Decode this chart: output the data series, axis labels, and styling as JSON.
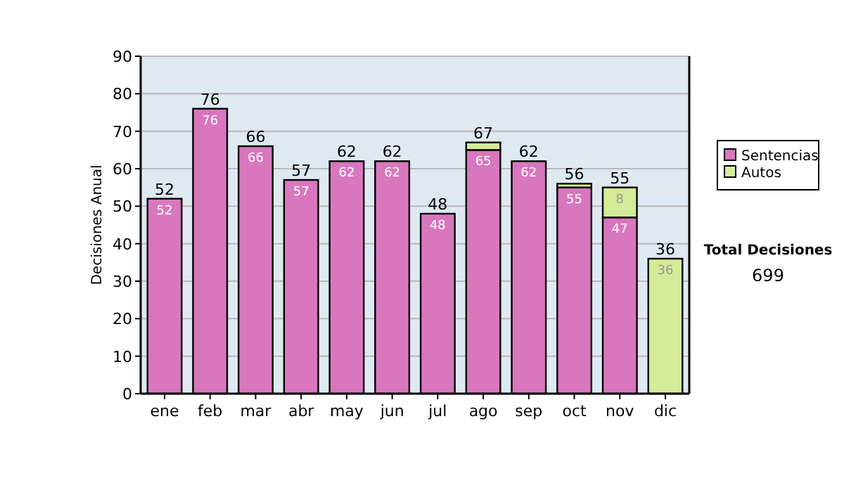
{
  "chart_data": {
    "type": "bar",
    "stacked": true,
    "ylabel": "Decisiones Anual",
    "categories": [
      "ene",
      "feb",
      "mar",
      "abr",
      "may",
      "jun",
      "jul",
      "ago",
      "sep",
      "oct",
      "nov",
      "dic"
    ],
    "series": [
      {
        "name": "Sentencias",
        "color": "#d877bd",
        "values": [
          52,
          76,
          66,
          57,
          62,
          62,
          48,
          65,
          62,
          55,
          47,
          null
        ],
        "value_labels": [
          "52",
          "76",
          "66",
          "57",
          "62",
          "62",
          "48",
          "65",
          "62",
          "55",
          "47",
          null
        ]
      },
      {
        "name": "Autos",
        "color": "#d4eb98",
        "values": [
          null,
          null,
          null,
          null,
          null,
          null,
          null,
          2,
          null,
          1,
          8,
          36
        ],
        "value_labels": [
          null,
          null,
          null,
          null,
          null,
          null,
          null,
          null,
          null,
          null,
          "8",
          "36"
        ]
      }
    ],
    "totals": [
      "52",
      "76",
      "66",
      "57",
      "62",
      "62",
      "48",
      "67",
      "62",
      "56",
      "55",
      "36"
    ],
    "ylim": [
      0,
      90
    ],
    "yticks": [
      0,
      10,
      20,
      30,
      40,
      50,
      60,
      70,
      80,
      90
    ],
    "grid": "y",
    "legend": "right",
    "annotations": [
      "Total Decisiones",
      "699"
    ]
  }
}
